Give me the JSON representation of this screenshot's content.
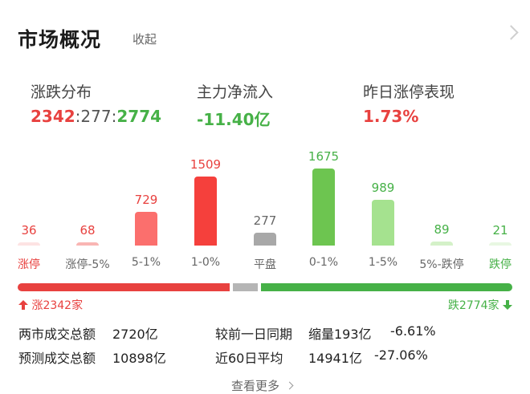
{
  "header": {
    "title": "市场概况",
    "collapse_label": "收起"
  },
  "stats": {
    "updown": {
      "label": "涨跌分布",
      "up": "2342",
      "flat": "277",
      "down": "2774",
      "sep": ":"
    },
    "mainflow": {
      "label": "主力净流入",
      "value": "-11.40亿"
    },
    "yesterday": {
      "label": "昨日涨停表现",
      "value": "1.73%"
    }
  },
  "chart_data": {
    "type": "bar",
    "categories": [
      "涨停",
      "涨停-5%",
      "5-1%",
      "1-0%",
      "平盘",
      "0-1%",
      "1-5%",
      "5%-跌停",
      "跌停"
    ],
    "values": [
      36,
      68,
      729,
      1509,
      277,
      1675,
      989,
      89,
      21
    ],
    "colors": [
      "#fde3e3",
      "#f9b5b3",
      "#fb6f6d",
      "#f5403c",
      "#a8a8a8",
      "#6dc550",
      "#a5e28f",
      "#d4f1c8",
      "#e8f7e2"
    ],
    "value_colors": [
      "#e8413f",
      "#e8413f",
      "#e8413f",
      "#e8413f",
      "#666666",
      "#46b147",
      "#46b147",
      "#46b147",
      "#46b147"
    ],
    "cat_colors": [
      "#e8413f",
      "#666666",
      "#666666",
      "#666666",
      "#666666",
      "#666666",
      "#666666",
      "#666666",
      "#46b147"
    ]
  },
  "progress": {
    "up": 2342,
    "flat": 277,
    "down": 2774,
    "up_color": "#e8413f",
    "flat_color": "#b5b5b5",
    "down_color": "#46b147"
  },
  "footer": {
    "up_label": "涨2342家",
    "down_label": "跌2774家"
  },
  "volume": {
    "row1_label": "两市成交总额",
    "row1_value": "2720亿",
    "row1_cmp_label": "较前一日同期",
    "row1_cmp_tag": "缩量193亿",
    "row1_cmp_pct": "-6.61%",
    "row2_label": "预测成交总额",
    "row2_value": "10898亿",
    "row2_cmp_label": "近60日平均",
    "row2_cmp_value": "14941亿",
    "row2_cmp_pct": "-27.06%"
  },
  "more": {
    "label": "查看更多"
  }
}
